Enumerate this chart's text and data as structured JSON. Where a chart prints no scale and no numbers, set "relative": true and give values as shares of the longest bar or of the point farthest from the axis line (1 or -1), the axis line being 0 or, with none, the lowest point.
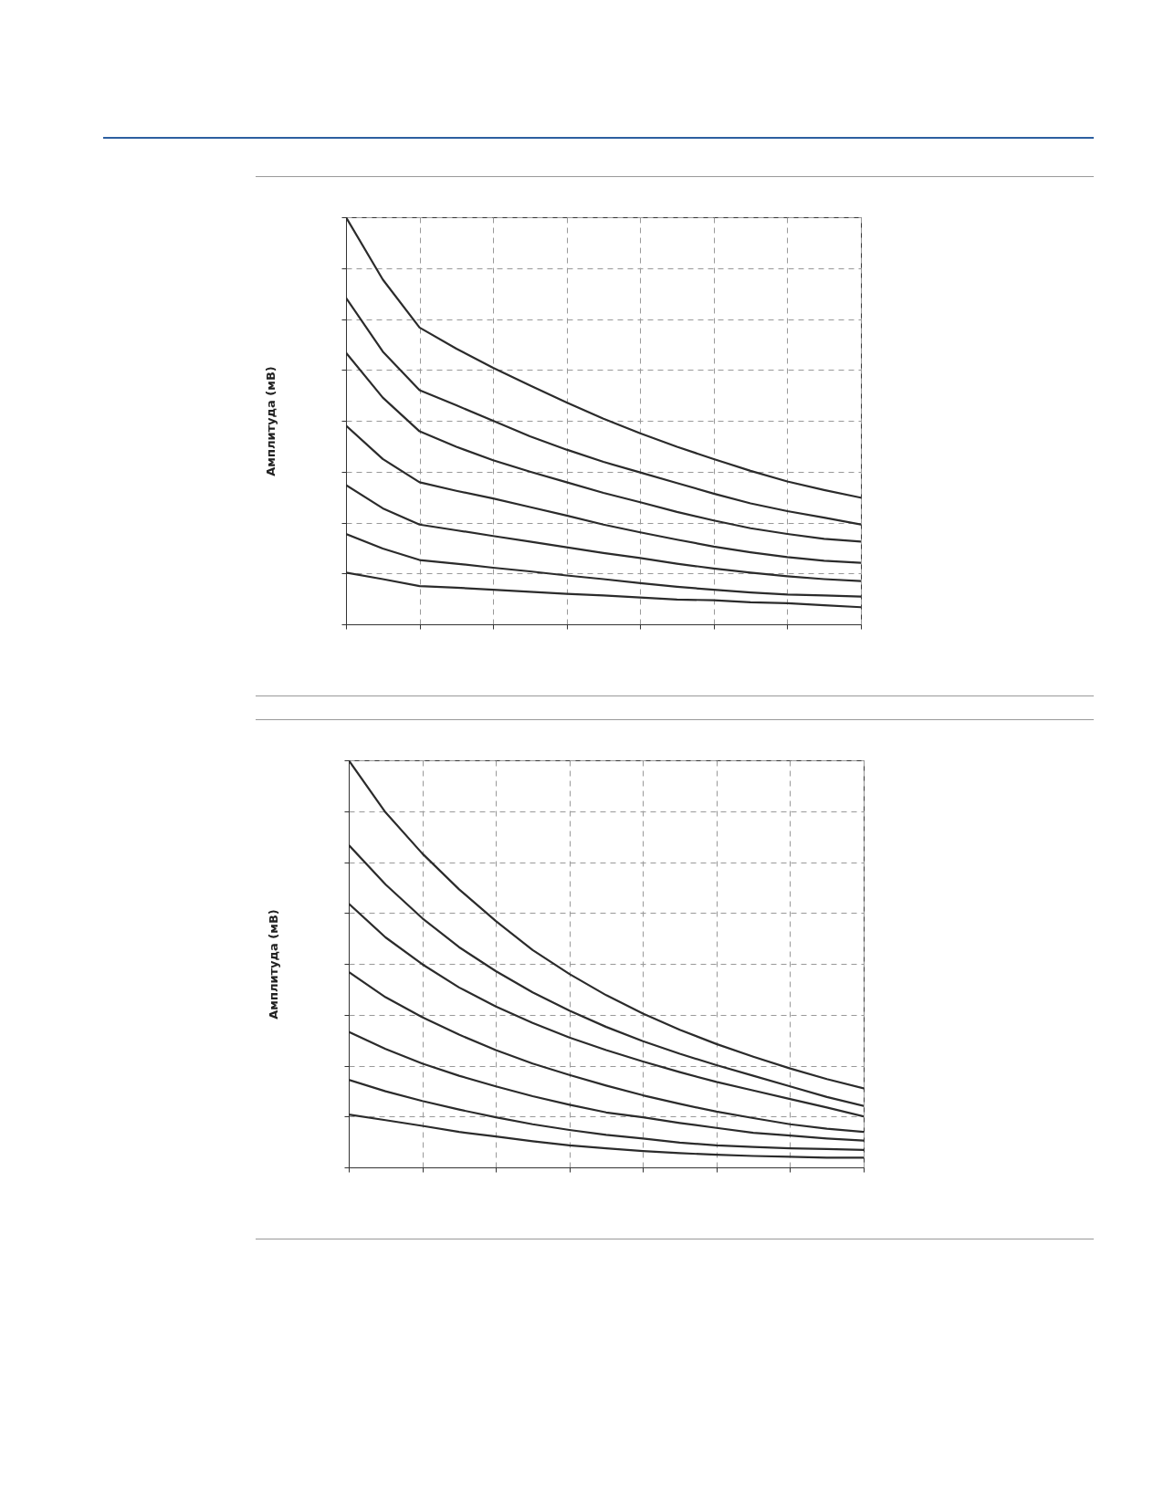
{
  "chart_data": [
    {
      "type": "line",
      "ylabel": "Амплитуда (мВ)",
      "relative": true,
      "grid": true,
      "tick_labels": false,
      "categories": [
        null,
        null,
        null,
        null,
        null,
        null,
        null,
        null,
        null,
        null,
        null,
        null,
        null,
        null,
        null
      ],
      "series": [
        {
          "color": "#2b2b2b",
          "values": [
            1.0,
            0.847,
            0.729,
            0.677,
            0.63,
            0.587,
            0.545,
            0.505,
            0.469,
            0.436,
            0.406,
            0.377,
            0.351,
            0.33,
            0.311
          ]
        },
        {
          "color": "#2b2b2b",
          "values": [
            0.802,
            0.67,
            0.575,
            0.538,
            0.5,
            0.462,
            0.429,
            0.399,
            0.373,
            0.347,
            0.321,
            0.297,
            0.278,
            0.262,
            0.245
          ]
        },
        {
          "color": "#2b2b2b",
          "values": [
            0.667,
            0.557,
            0.474,
            0.436,
            0.403,
            0.375,
            0.349,
            0.323,
            0.3,
            0.276,
            0.255,
            0.236,
            0.222,
            0.21,
            0.203
          ]
        },
        {
          "color": "#2b2b2b",
          "values": [
            0.488,
            0.406,
            0.349,
            0.328,
            0.309,
            0.288,
            0.267,
            0.245,
            0.226,
            0.208,
            0.191,
            0.177,
            0.165,
            0.156,
            0.151
          ]
        },
        {
          "color": "#2b2b2b",
          "values": [
            0.342,
            0.285,
            0.245,
            0.231,
            0.217,
            0.203,
            0.189,
            0.175,
            0.163,
            0.149,
            0.137,
            0.127,
            0.118,
            0.111,
            0.106
          ]
        },
        {
          "color": "#2b2b2b",
          "values": [
            0.222,
            0.186,
            0.158,
            0.149,
            0.139,
            0.13,
            0.12,
            0.111,
            0.101,
            0.092,
            0.085,
            0.078,
            0.073,
            0.071,
            0.068
          ]
        },
        {
          "color": "#2b2b2b",
          "values": [
            0.127,
            0.111,
            0.094,
            0.09,
            0.085,
            0.08,
            0.075,
            0.071,
            0.066,
            0.061,
            0.059,
            0.054,
            0.052,
            0.047,
            0.042
          ]
        }
      ]
    },
    {
      "type": "line",
      "ylabel": "Амплитуда (мВ)",
      "relative": true,
      "grid": true,
      "tick_labels": false,
      "categories": [
        null,
        null,
        null,
        null,
        null,
        null,
        null,
        null,
        null,
        null,
        null,
        null,
        null,
        null,
        null
      ],
      "series": [
        {
          "color": "#2b2b2b",
          "values": [
            1.0,
            0.872,
            0.771,
            0.683,
            0.605,
            0.534,
            0.475,
            0.423,
            0.378,
            0.338,
            0.303,
            0.272,
            0.243,
            0.217,
            0.194
          ]
        },
        {
          "color": "#2b2b2b",
          "values": [
            0.792,
            0.695,
            0.612,
            0.541,
            0.482,
            0.43,
            0.385,
            0.345,
            0.31,
            0.279,
            0.251,
            0.225,
            0.199,
            0.173,
            0.151
          ]
        },
        {
          "color": "#2b2b2b",
          "values": [
            0.648,
            0.565,
            0.499,
            0.442,
            0.395,
            0.355,
            0.319,
            0.288,
            0.26,
            0.234,
            0.21,
            0.189,
            0.168,
            0.147,
            0.125
          ]
        },
        {
          "color": "#2b2b2b",
          "values": [
            0.48,
            0.418,
            0.369,
            0.326,
            0.288,
            0.255,
            0.227,
            0.201,
            0.177,
            0.156,
            0.137,
            0.121,
            0.106,
            0.095,
            0.087
          ]
        },
        {
          "color": "#2b2b2b",
          "values": [
            0.333,
            0.291,
            0.255,
            0.225,
            0.199,
            0.175,
            0.154,
            0.135,
            0.123,
            0.109,
            0.097,
            0.085,
            0.078,
            0.071,
            0.066
          ]
        },
        {
          "color": "#2b2b2b",
          "values": [
            0.215,
            0.187,
            0.163,
            0.142,
            0.123,
            0.106,
            0.092,
            0.08,
            0.071,
            0.061,
            0.054,
            0.05,
            0.047,
            0.045,
            0.043
          ]
        },
        {
          "color": "#2b2b2b",
          "values": [
            0.13,
            0.116,
            0.102,
            0.087,
            0.076,
            0.064,
            0.054,
            0.047,
            0.04,
            0.035,
            0.031,
            0.028,
            0.026,
            0.024,
            0.024
          ]
        }
      ]
    }
  ]
}
